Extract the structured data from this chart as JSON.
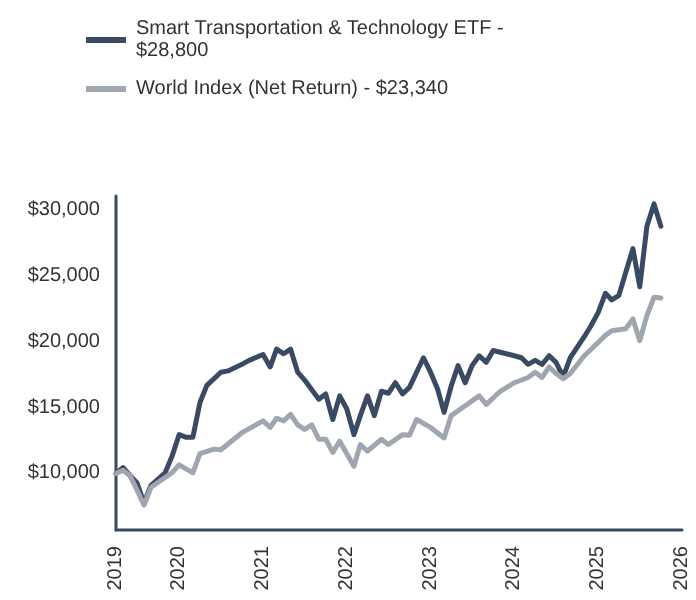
{
  "chart_data": {
    "type": "line",
    "xlim": [
      "2019-04",
      "2026-01"
    ],
    "xticks": [
      {
        "value": "2019-04",
        "label": "2019"
      },
      {
        "value": "2020-01",
        "label": "2020"
      },
      {
        "value": "2021-01",
        "label": "2021"
      },
      {
        "value": "2022-01",
        "label": "2022"
      },
      {
        "value": "2023-01",
        "label": "2023"
      },
      {
        "value": "2024-01",
        "label": "2024"
      },
      {
        "value": "2025-01",
        "label": "2025"
      },
      {
        "value": "2026-01",
        "label": "2026"
      }
    ],
    "ylim": [
      5700,
      31100
    ],
    "yticks": [
      {
        "value": 10000,
        "label": "$10,000"
      },
      {
        "value": 15000,
        "label": "$15,000"
      },
      {
        "value": 20000,
        "label": "$20,000"
      },
      {
        "value": 25000,
        "label": "$25,000"
      },
      {
        "value": 30000,
        "label": "$30,000"
      }
    ],
    "grid": false,
    "legend": "top",
    "marker": "none",
    "line_style": "solid",
    "series": [
      {
        "name": "Smart Transportation & Technology ETF - $28,800",
        "color": "#3b4a63",
        "x": [
          "2019-04",
          "2019-05",
          "2019-06",
          "2019-07",
          "2019-08",
          "2019-09",
          "2019-11",
          "2019-12",
          "2020-01",
          "2020-02",
          "2020-03",
          "2020-04",
          "2020-05",
          "2020-07",
          "2020-08",
          "2020-10",
          "2020-11",
          "2021-01",
          "2021-02",
          "2021-03",
          "2021-04",
          "2021-05",
          "2021-06",
          "2021-07",
          "2021-09",
          "2021-10",
          "2021-11",
          "2021-12",
          "2022-01",
          "2022-02",
          "2022-03",
          "2022-04",
          "2022-05",
          "2022-06",
          "2022-07",
          "2022-08",
          "2022-09",
          "2022-10",
          "2022-12",
          "2023-01",
          "2023-02",
          "2023-03",
          "2023-04",
          "2023-05",
          "2023-06",
          "2023-07",
          "2023-08",
          "2023-09",
          "2023-10",
          "2024-01",
          "2024-02",
          "2024-03",
          "2024-04",
          "2024-05",
          "2024-06",
          "2024-07",
          "2024-08",
          "2024-09",
          "2024-11",
          "2024-12",
          "2025-01",
          "2025-02",
          "2025-03",
          "2025-04",
          "2025-06",
          "2025-07",
          "2025-08",
          "2025-09",
          "2025-10"
        ],
        "values": [
          10000,
          10450,
          9850,
          9300,
          7750,
          9100,
          10050,
          11300,
          12950,
          12750,
          12750,
          15400,
          16700,
          17700,
          17800,
          18300,
          18600,
          19050,
          18100,
          19450,
          19100,
          19450,
          17700,
          17100,
          15650,
          16050,
          14100,
          15900,
          14900,
          12950,
          14400,
          15900,
          14400,
          16250,
          16100,
          16900,
          16050,
          16550,
          18800,
          17700,
          16400,
          14650,
          16650,
          18200,
          16900,
          18200,
          18950,
          18450,
          19350,
          18950,
          18800,
          18300,
          18600,
          18300,
          18950,
          18450,
          17350,
          18800,
          20400,
          21250,
          22250,
          23700,
          23200,
          23550,
          27100,
          24200,
          28800,
          30500,
          28800
        ]
      },
      {
        "name": "World Index (Net Return) - $23,340",
        "color": "#a0a6b0",
        "x": [
          "2019-04",
          "2019-05",
          "2019-06",
          "2019-08",
          "2019-09",
          "2019-12",
          "2020-01",
          "2020-03",
          "2020-04",
          "2020-06",
          "2020-07",
          "2020-10",
          "2021-01",
          "2021-02",
          "2021-03",
          "2021-04",
          "2021-05",
          "2021-06",
          "2021-07",
          "2021-08",
          "2021-09",
          "2021-10",
          "2021-11",
          "2021-12",
          "2022-02",
          "2022-03",
          "2022-04",
          "2022-06",
          "2022-07",
          "2022-09",
          "2022-10",
          "2022-11",
          "2023-01",
          "2023-03",
          "2023-04",
          "2023-06",
          "2023-08",
          "2023-09",
          "2023-11",
          "2024-01",
          "2024-03",
          "2024-04",
          "2024-05",
          "2024-06",
          "2024-07",
          "2024-08",
          "2024-09",
          "2024-11",
          "2024-12",
          "2025-02",
          "2025-03",
          "2025-05",
          "2025-06",
          "2025-07",
          "2025-08",
          "2025-09",
          "2025-10"
        ],
        "values": [
          10000,
          10250,
          9850,
          7600,
          8950,
          10050,
          10650,
          10050,
          11500,
          11850,
          11800,
          13100,
          14000,
          13500,
          14200,
          14000,
          14500,
          13700,
          13350,
          13700,
          12600,
          12600,
          11600,
          12450,
          10550,
          12200,
          11700,
          12600,
          12200,
          12950,
          12900,
          14100,
          13500,
          12700,
          14400,
          15150,
          15900,
          15250,
          16250,
          16900,
          17300,
          17700,
          17300,
          18100,
          17600,
          17200,
          17600,
          18950,
          19450,
          20500,
          20850,
          21000,
          21750,
          20100,
          22000,
          23400,
          23340
        ]
      }
    ]
  }
}
